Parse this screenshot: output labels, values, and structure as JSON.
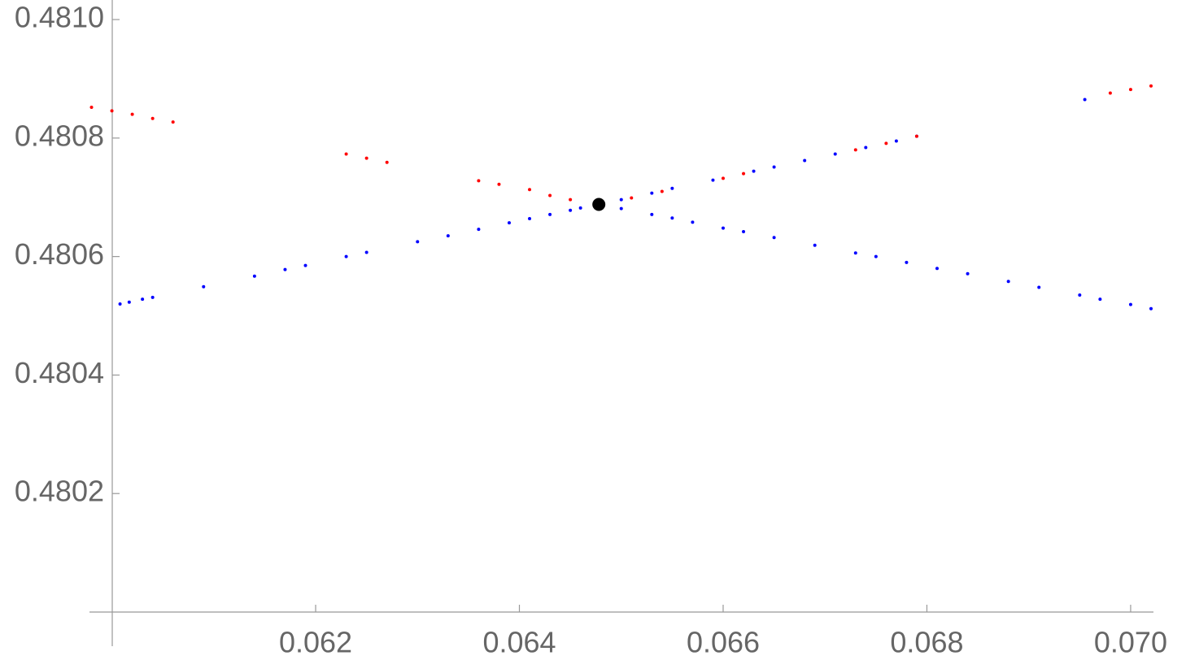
{
  "chart_data": {
    "type": "scatter",
    "xlim": [
      0.05978,
      0.070224
    ],
    "ylim": [
      0.48,
      0.481033
    ],
    "xticks": [
      0.062,
      0.064,
      0.066,
      0.068,
      {
        "value": 0.07,
        "label": "0.070"
      }
    ],
    "yticks": [
      0.4802,
      0.4804,
      0.4806,
      0.4808,
      {
        "value": 0.481,
        "label": "0.4810"
      }
    ],
    "series": [
      {
        "color": "#0000ff",
        "size": 2,
        "x": [
          0.06008,
          0.06017,
          0.0603,
          0.0604,
          0.0609,
          0.0614,
          0.0617,
          0.0619,
          0.0623,
          0.0625,
          0.063,
          0.0633,
          0.0636,
          0.0639,
          0.0641,
          0.0643,
          0.0645,
          0.0646,
          0.065,
          0.0653,
          0.0655,
          0.0657,
          0.066,
          0.0662,
          0.0665,
          0.0669,
          0.0673,
          0.0675,
          0.0678,
          0.0681,
          0.0684,
          0.0688,
          0.0691,
          0.0695,
          0.0697,
          0.07,
          0.0702,
          0.065,
          0.0653,
          0.0655,
          0.0659,
          0.0663,
          0.0665,
          0.0668,
          0.0671,
          0.0674,
          0.0677,
          0.0679,
          0.06955
        ],
        "values": [
          0.48052,
          0.480523,
          0.480528,
          0.480531,
          0.480549,
          0.480567,
          0.480578,
          0.480585,
          0.4806,
          0.480607,
          0.480625,
          0.480635,
          0.480646,
          0.480657,
          0.480664,
          0.480671,
          0.480678,
          0.480682,
          0.480681,
          0.480671,
          0.480665,
          0.480658,
          0.480648,
          0.480642,
          0.480632,
          0.480619,
          0.480606,
          0.4806,
          0.48059,
          0.48058,
          0.480571,
          0.480558,
          0.480548,
          0.480535,
          0.480528,
          0.480519,
          0.480512,
          0.480696,
          0.480707,
          0.480715,
          0.480729,
          0.480744,
          0.480751,
          0.480762,
          0.480773,
          0.480784,
          0.480795,
          0.480803,
          0.480865
        ]
      },
      {
        "color": "#ff0000",
        "size": 2,
        "x": [
          0.0598,
          0.06,
          0.0602,
          0.0604,
          0.0606,
          0.0623,
          0.0625,
          0.0627,
          0.0636,
          0.0638,
          0.0641,
          0.0643,
          0.0645,
          0.0651,
          0.0654,
          0.066,
          0.0662,
          0.0673,
          0.0676,
          0.0679,
          0.0698,
          0.07,
          0.0702
        ],
        "values": [
          0.480852,
          0.480846,
          0.48084,
          0.480833,
          0.480827,
          0.480773,
          0.480766,
          0.480759,
          0.480728,
          0.480722,
          0.480713,
          0.480703,
          0.480696,
          0.480699,
          0.48071,
          0.480732,
          0.48074,
          0.48078,
          0.480791,
          0.480803,
          0.480876,
          0.480882,
          0.480888
        ]
      },
      {
        "color": "#000000",
        "size": 8,
        "x": [
          0.06478
        ],
        "values": [
          0.480688
        ]
      }
    ]
  }
}
